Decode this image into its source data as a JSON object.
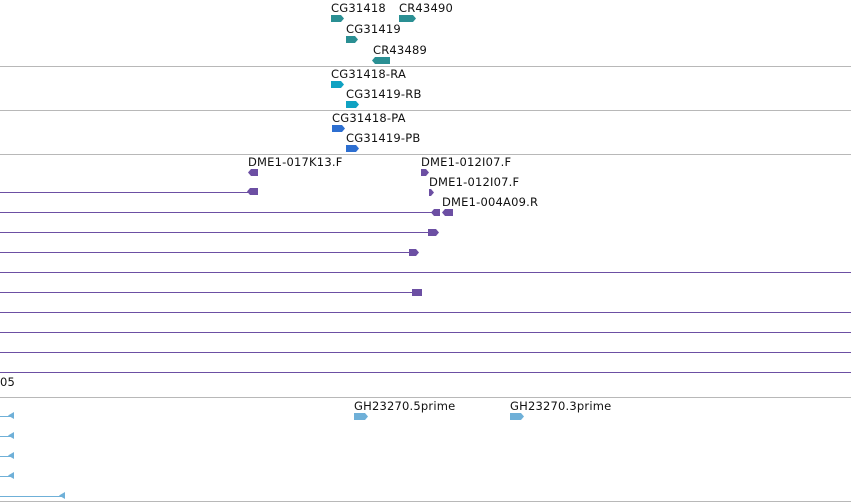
{
  "tracks": {
    "genes": {
      "color": "#2a8f93",
      "labels": [
        "CG31418",
        "CR43490",
        "CG31419",
        "CR43489"
      ]
    },
    "transcripts": {
      "color": "#10a2c2",
      "labels": [
        "CG31418-RA",
        "CG31419-RB"
      ]
    },
    "proteins": {
      "color": "#2d6fd1",
      "labels": [
        "CG31418-PA",
        "CG31419-PB"
      ]
    },
    "bac_ends": {
      "color": "#6c4fa3",
      "labels": [
        "DME1-017K13.F",
        "DME1-012I07.F",
        "DME1-012I07.F",
        "DME1-004A09.R"
      ],
      "partial_label": "05"
    },
    "ests": {
      "color": "#6fb0d8",
      "labels": [
        "GH23270.5prime",
        "GH23270.3prime"
      ]
    }
  }
}
